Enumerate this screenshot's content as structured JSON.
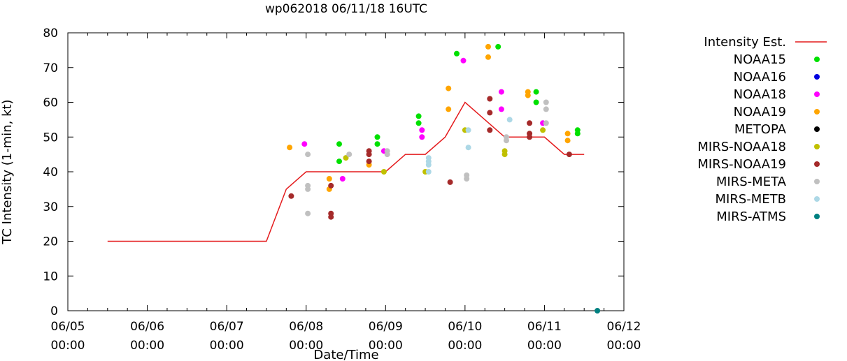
{
  "chart_data": {
    "type": "scatter",
    "title": "wp062018 06/11/18 16UTC",
    "xlabel": "Date/Time",
    "ylabel": "TC Intensity (1-min, kt)",
    "xlim": [
      "06/05 00:00",
      "06/12 00:00"
    ],
    "ylim": [
      0,
      80
    ],
    "yticks": [
      0,
      10,
      20,
      30,
      40,
      50,
      60,
      70,
      80
    ],
    "xticks": [
      {
        "date": "06/05",
        "time": "00:00"
      },
      {
        "date": "06/06",
        "time": "00:00"
      },
      {
        "date": "06/07",
        "time": "00:00"
      },
      {
        "date": "06/08",
        "time": "00:00"
      },
      {
        "date": "06/09",
        "time": "00:00"
      },
      {
        "date": "06/10",
        "time": "00:00"
      },
      {
        "date": "06/11",
        "time": "00:00"
      },
      {
        "date": "06/12",
        "time": "00:00"
      }
    ],
    "grid": false,
    "legend": "right",
    "intensity_line": {
      "name": "Intensity Est.",
      "color": "#e41a1c",
      "points": [
        [
          "06/05 12:00",
          20
        ],
        [
          "06/07 12:00",
          20
        ],
        [
          "06/07 18:00",
          35
        ],
        [
          "06/08 00:00",
          40
        ],
        [
          "06/09 00:00",
          40
        ],
        [
          "06/09 06:00",
          45
        ],
        [
          "06/09 12:00",
          45
        ],
        [
          "06/09 18:00",
          50
        ],
        [
          "06/10 00:00",
          60
        ],
        [
          "06/10 12:00",
          50
        ],
        [
          "06/11 00:00",
          50
        ],
        [
          "06/11 06:00",
          45
        ],
        [
          "06/11 12:00",
          45
        ]
      ]
    },
    "series": [
      {
        "name": "NOAA15",
        "color": "#00e000",
        "points": [
          [
            "06/08 10:00",
            48
          ],
          [
            "06/08 10:00",
            43
          ],
          [
            "06/08 21:30",
            50
          ],
          [
            "06/08 21:30",
            48
          ],
          [
            "06/09 10:00",
            56
          ],
          [
            "06/09 10:00",
            54
          ],
          [
            "06/09 21:30",
            74
          ],
          [
            "06/10 10:00",
            76
          ],
          [
            "06/10 21:30",
            63
          ],
          [
            "06/10 21:30",
            60
          ],
          [
            "06/11 10:00",
            52
          ],
          [
            "06/11 10:00",
            51
          ]
        ]
      },
      {
        "name": "NOAA16",
        "color": "#0000e0",
        "points": []
      },
      {
        "name": "NOAA18",
        "color": "#ff00ff",
        "points": [
          [
            "06/07 23:30",
            48
          ],
          [
            "06/08 11:00",
            38
          ],
          [
            "06/08 23:30",
            46
          ],
          [
            "06/09 11:00",
            52
          ],
          [
            "06/09 11:00",
            50
          ],
          [
            "06/09 23:30",
            72
          ],
          [
            "06/10 11:00",
            63
          ],
          [
            "06/10 11:00",
            58
          ],
          [
            "06/10 23:30",
            54
          ]
        ]
      },
      {
        "name": "NOAA19",
        "color": "#ffa500",
        "points": [
          [
            "06/07 19:00",
            47
          ],
          [
            "06/08 07:00",
            38
          ],
          [
            "06/08 07:00",
            35
          ],
          [
            "06/08 19:00",
            42
          ],
          [
            "06/09 19:00",
            64
          ],
          [
            "06/09 19:00",
            58
          ],
          [
            "06/10 07:00",
            76
          ],
          [
            "06/10 07:00",
            73
          ],
          [
            "06/10 19:00",
            63
          ],
          [
            "06/10 19:00",
            62
          ],
          [
            "06/11 07:00",
            51
          ],
          [
            "06/11 07:00",
            49
          ]
        ]
      },
      {
        "name": "METOPA",
        "color": "#000000",
        "points": []
      },
      {
        "name": "MIRS-NOAA18",
        "color": "#c0c000",
        "points": [
          [
            "06/08 12:00",
            44
          ],
          [
            "06/08 23:30",
            40
          ],
          [
            "06/09 12:00",
            40
          ],
          [
            "06/10 00:00",
            52
          ],
          [
            "06/10 12:00",
            46
          ],
          [
            "06/10 12:00",
            45
          ],
          [
            "06/10 23:30",
            52
          ]
        ]
      },
      {
        "name": "MIRS-NOAA19",
        "color": "#a52a2a",
        "points": [
          [
            "06/07 19:30",
            33
          ],
          [
            "06/08 07:30",
            36
          ],
          [
            "06/08 07:30",
            28
          ],
          [
            "06/08 07:30",
            27
          ],
          [
            "06/08 19:00",
            46
          ],
          [
            "06/08 19:00",
            45
          ],
          [
            "06/08 19:00",
            43
          ],
          [
            "06/09 19:30",
            37
          ],
          [
            "06/10 07:30",
            61
          ],
          [
            "06/10 07:30",
            57
          ],
          [
            "06/10 07:30",
            52
          ],
          [
            "06/10 19:30",
            54
          ],
          [
            "06/10 19:30",
            51
          ],
          [
            "06/10 19:30",
            50
          ],
          [
            "06/11 07:30",
            45
          ]
        ]
      },
      {
        "name": "MIRS-META",
        "color": "#c0c0c0",
        "points": [
          [
            "06/08 00:30",
            45
          ],
          [
            "06/08 00:30",
            36
          ],
          [
            "06/08 00:30",
            35
          ],
          [
            "06/08 00:30",
            28
          ],
          [
            "06/08 13:00",
            45
          ],
          [
            "06/09 00:30",
            46
          ],
          [
            "06/09 00:30",
            45
          ],
          [
            "06/10 00:30",
            39
          ],
          [
            "06/10 00:30",
            38
          ],
          [
            "06/10 12:30",
            50
          ],
          [
            "06/10 12:30",
            49
          ],
          [
            "06/11 00:30",
            60
          ],
          [
            "06/11 00:30",
            58
          ],
          [
            "06/11 00:30",
            54
          ]
        ]
      },
      {
        "name": "MIRS-METB",
        "color": "#add8e6",
        "points": [
          [
            "06/09 13:00",
            44
          ],
          [
            "06/09 13:00",
            43
          ],
          [
            "06/09 13:00",
            42
          ],
          [
            "06/09 13:00",
            40
          ],
          [
            "06/10 01:00",
            52
          ],
          [
            "06/10 01:00",
            47
          ],
          [
            "06/10 13:30",
            55
          ]
        ]
      },
      {
        "name": "MIRS-ATMS",
        "color": "#008080",
        "points": [
          [
            "06/11 16:00",
            0
          ]
        ]
      }
    ]
  }
}
